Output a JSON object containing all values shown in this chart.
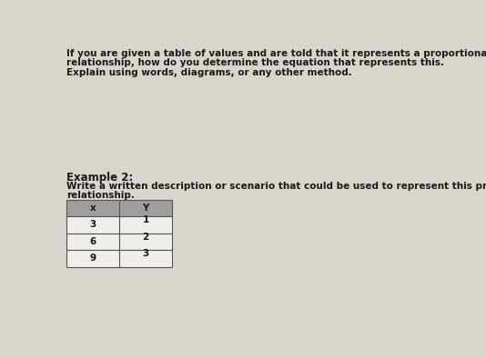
{
  "line1": "If you are given a table of values and are told that it represents a proportional",
  "line2": "relationship, how do you determine the equation that represents this.",
  "line3": "Explain using words, diagrams, or any other method.",
  "example_header": "Example 2:",
  "example_line1": "Write a written description or scenario that could be used to represent this proportional",
  "example_line2": "relationship.",
  "table_headers": [
    "x",
    "Y"
  ],
  "table_data": [
    [
      "3",
      "1"
    ],
    [
      "6",
      "2"
    ],
    [
      "9",
      "3"
    ]
  ],
  "paper_color": "#d9d5cc",
  "text_color": "#1a1a1a",
  "header_bg": "#9e9e9e",
  "table_bg": "#f0eeeb",
  "font_size_main": 7.5,
  "font_size_example_header": 8.5,
  "font_size_table": 7.5
}
